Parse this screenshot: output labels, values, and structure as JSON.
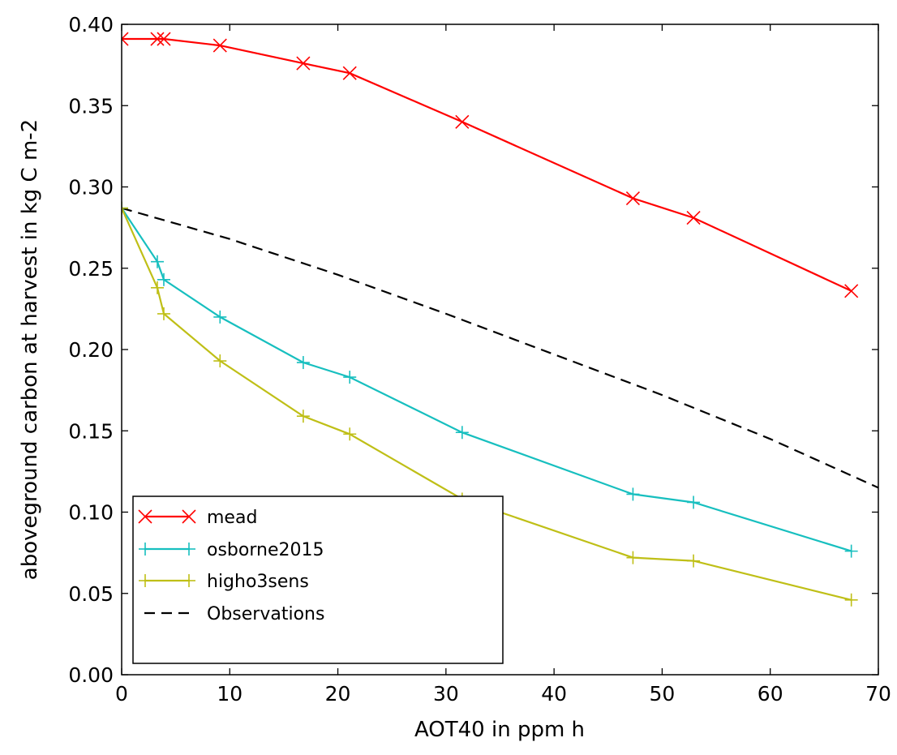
{
  "chart_data": {
    "type": "line",
    "xlabel": "AOT40 in ppm h",
    "ylabel": "aboveground carbon at harvest in kg C m-2",
    "xlim": [
      0,
      70
    ],
    "ylim": [
      0,
      0.4
    ],
    "xticks": [
      "0",
      "10",
      "20",
      "30",
      "40",
      "50",
      "60",
      "70"
    ],
    "yticks": [
      "0.00",
      "0.05",
      "0.10",
      "0.15",
      "0.20",
      "0.25",
      "0.30",
      "0.35",
      "0.40"
    ],
    "grid": false,
    "legend_position": "lower-left",
    "series": [
      {
        "name": "mead",
        "color": "#ff0000",
        "marker": "x",
        "line_style": "solid",
        "x": [
          0,
          3.3,
          3.9,
          9.1,
          16.8,
          21.1,
          31.5,
          47.3,
          52.9,
          67.5
        ],
        "y": [
          0.391,
          0.391,
          0.391,
          0.387,
          0.376,
          0.37,
          0.34,
          0.293,
          0.281,
          0.236
        ]
      },
      {
        "name": "osborne2015",
        "color": "#17bfbf",
        "marker": "+",
        "line_style": "solid",
        "x": [
          0,
          3.3,
          3.9,
          9.1,
          16.8,
          21.1,
          31.5,
          47.3,
          52.9,
          67.5
        ],
        "y": [
          0.287,
          0.254,
          0.243,
          0.22,
          0.192,
          0.183,
          0.149,
          0.111,
          0.106,
          0.076
        ]
      },
      {
        "name": "higho3sens",
        "color": "#bfbf17",
        "marker": "+",
        "line_style": "solid",
        "x": [
          0,
          3.3,
          3.9,
          9.1,
          16.8,
          21.1,
          31.5,
          47.3,
          52.9,
          67.5
        ],
        "y": [
          0.287,
          0.238,
          0.222,
          0.193,
          0.159,
          0.148,
          0.108,
          0.072,
          0.07,
          0.046
        ]
      },
      {
        "name": "Observations",
        "color": "#000000",
        "marker": "none",
        "line_style": "dashed",
        "x": [
          0,
          10,
          20,
          30,
          40,
          50,
          60,
          70
        ],
        "y": [
          0.287,
          0.268,
          0.246,
          0.222,
          0.197,
          0.172,
          0.145,
          0.115
        ]
      }
    ]
  }
}
